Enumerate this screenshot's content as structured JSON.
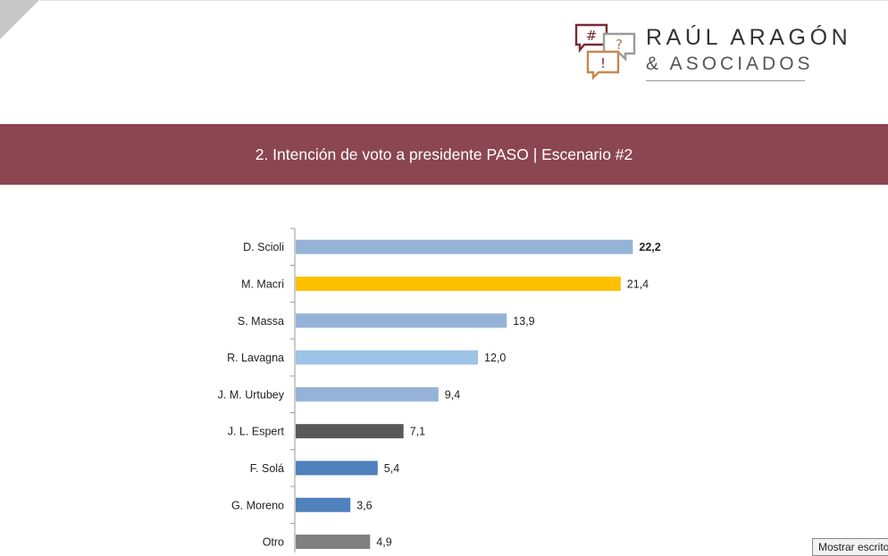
{
  "header": {
    "brand_line1": "RAÚL ARAGÓN",
    "brand_line2": "& ASOCIADOS",
    "logo_glyphs": [
      "#",
      "?",
      "!"
    ],
    "logo_colors": [
      "#7a2a33",
      "#9b9b9b",
      "#c8874f"
    ]
  },
  "banner": {
    "title": "2. Intención de voto a presidente PASO | Escenario #2",
    "color": "#8b4651"
  },
  "chart_data": {
    "type": "bar",
    "orientation": "horizontal",
    "categories": [
      "D. Scioli",
      "M. Macri",
      "S. Massa",
      "R. Lavagna",
      "J. M. Urtubey",
      "J. L. Espert",
      "F. Solá",
      "G. Moreno",
      "Otro"
    ],
    "values": [
      22.2,
      21.4,
      13.9,
      12.0,
      9.4,
      7.1,
      5.4,
      3.6,
      4.9
    ],
    "value_labels": [
      "22,2",
      "21,4",
      "13,9",
      "12,0",
      "9,4",
      "7,1",
      "5,4",
      "3,6",
      "4,9"
    ],
    "bold_labels": [
      true,
      false,
      false,
      false,
      false,
      false,
      false,
      false,
      false
    ],
    "colors": [
      "#95b3d7",
      "#ffc000",
      "#95b3d7",
      "#9dc3e6",
      "#95b3d7",
      "#595959",
      "#4f81bd",
      "#4f81bd",
      "#808080"
    ],
    "xlim": [
      0,
      25
    ],
    "grid": false,
    "title": "",
    "xlabel": "",
    "ylabel": ""
  },
  "status_tooltip": "Mostrar escrito"
}
